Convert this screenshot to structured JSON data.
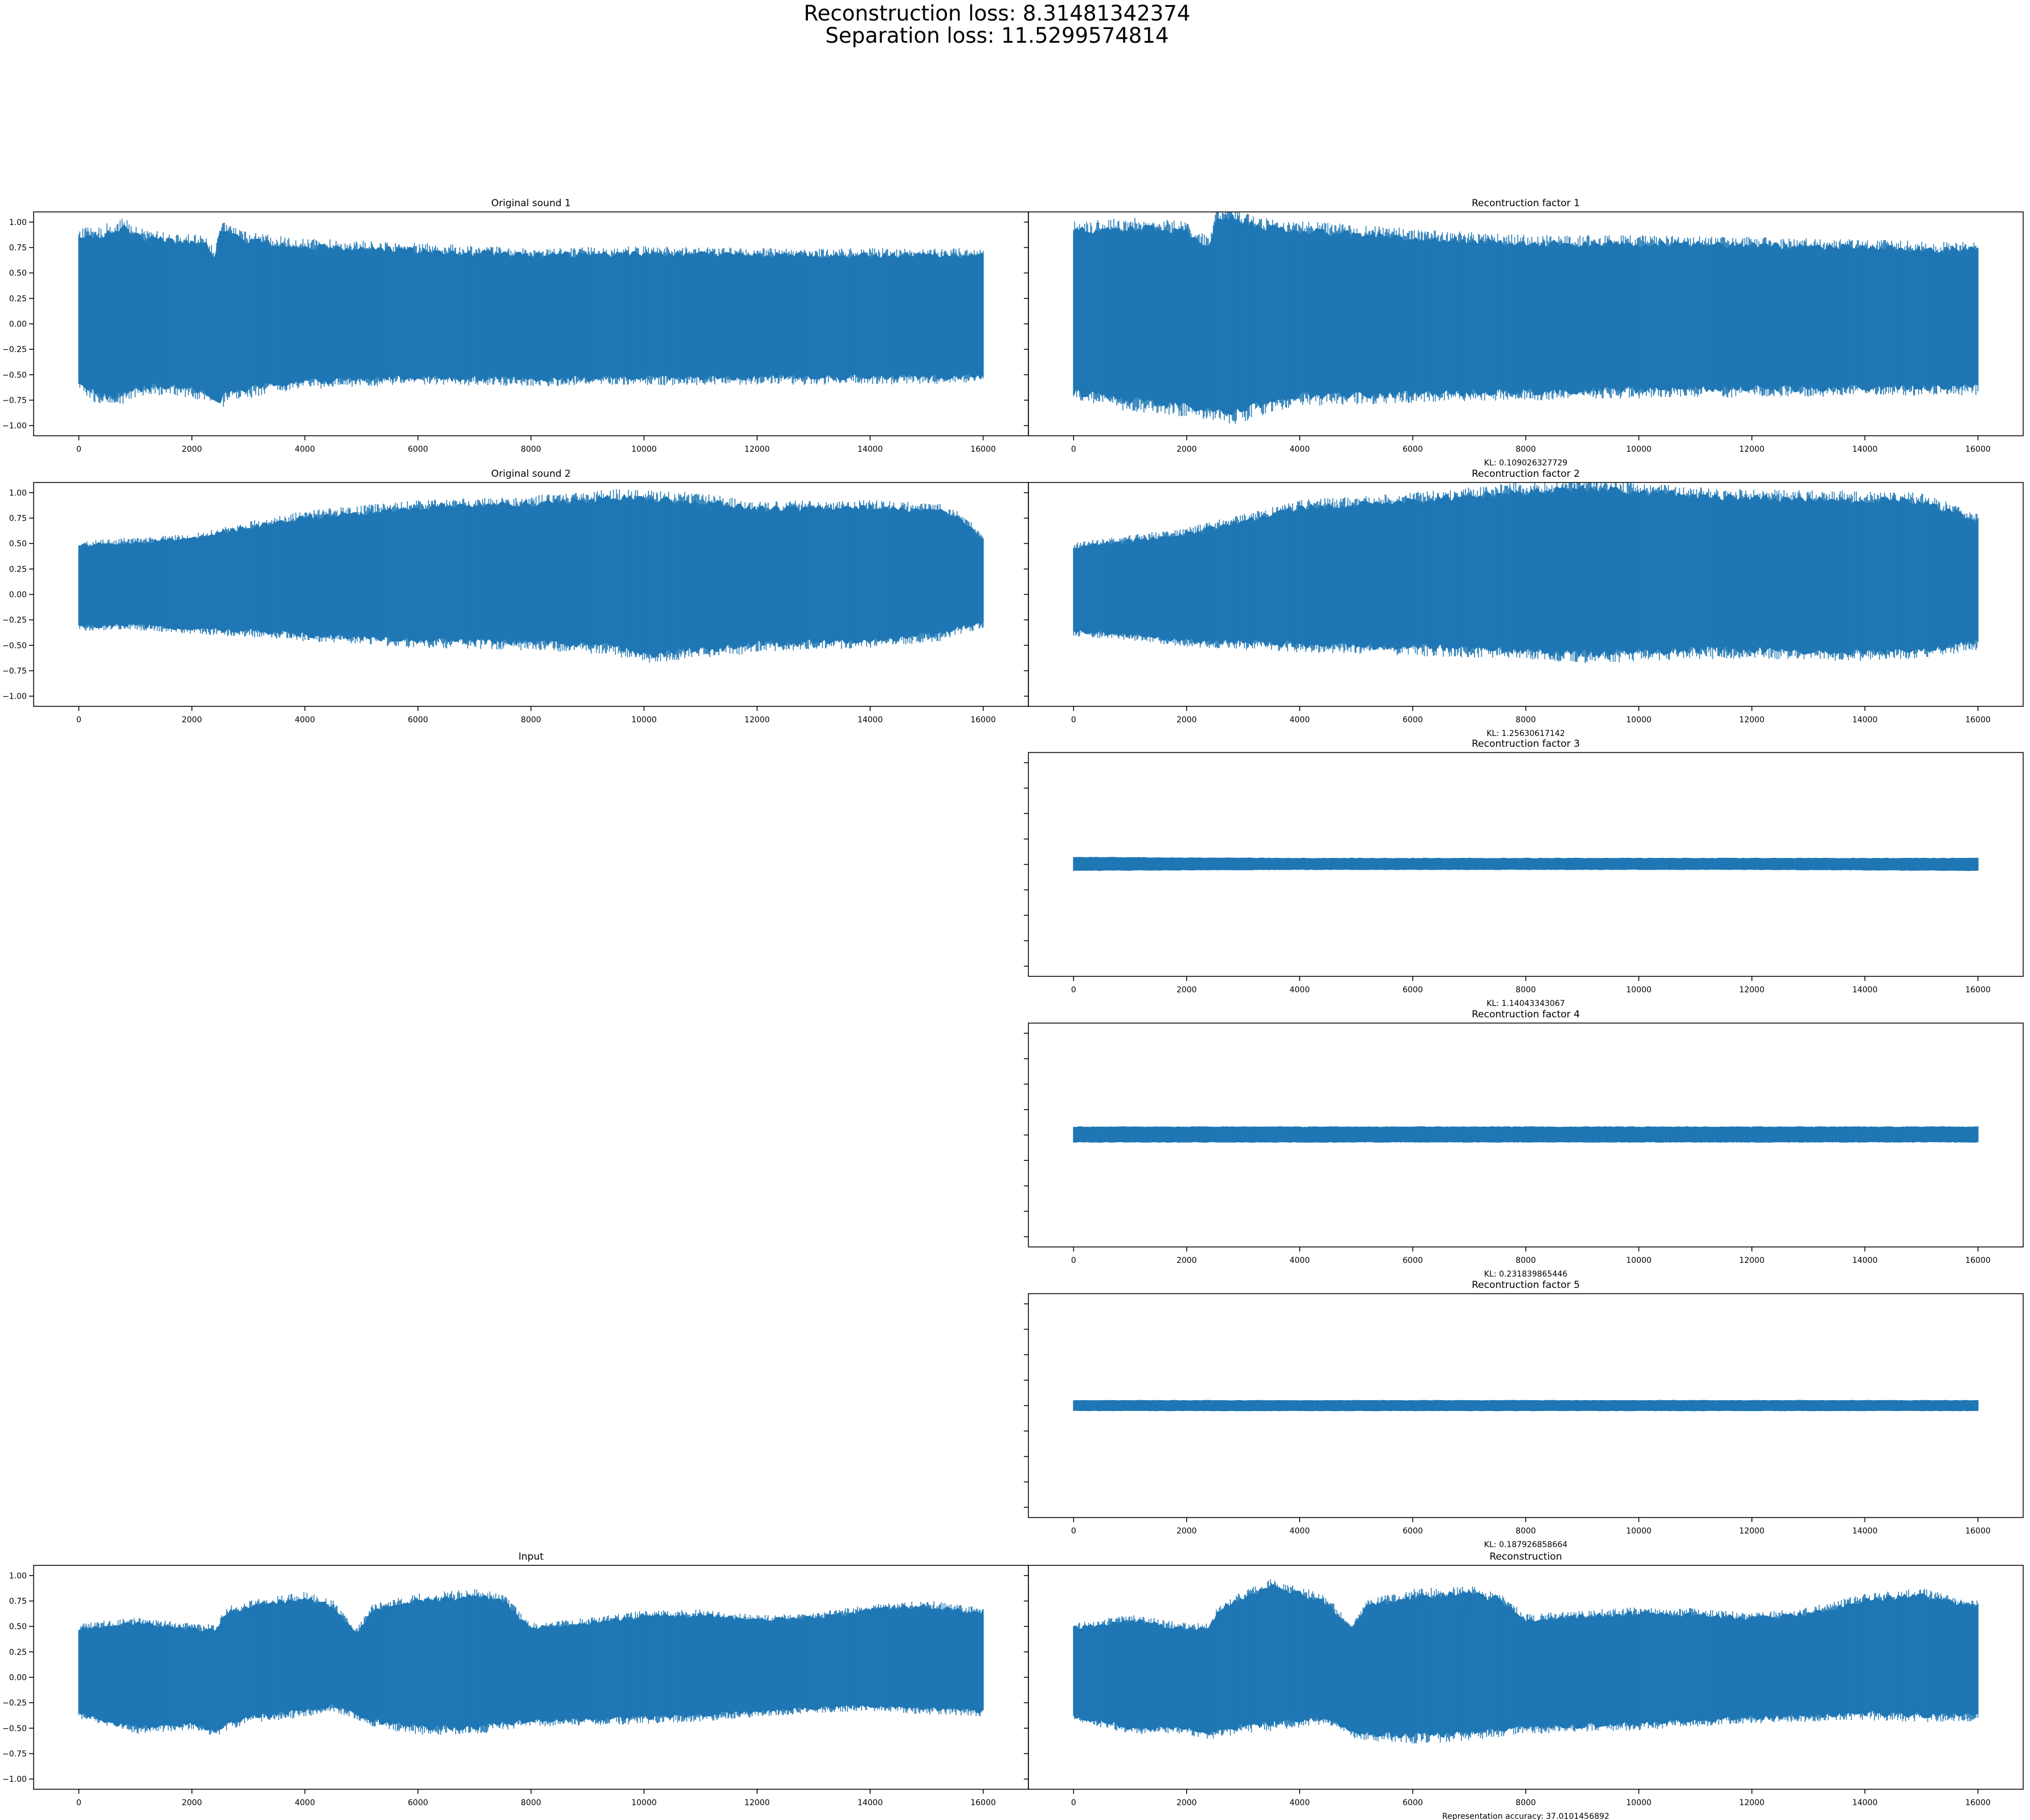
{
  "figure": {
    "suptitle_line1": "Reconstruction loss: 8.31481342374",
    "suptitle_line2": "Separation loss: 11.5299574814",
    "line_color": "#1f77b4"
  },
  "chart_data": [
    {
      "id": "orig1",
      "type": "line",
      "title": "Original sound 1",
      "xlabel": "",
      "xlim": [
        -800,
        16800
      ],
      "ylim": [
        -1.1,
        1.1
      ],
      "xticks": [
        0,
        2000,
        4000,
        6000,
        8000,
        10000,
        12000,
        14000,
        16000
      ],
      "yticks": [
        -1.0,
        -0.75,
        -0.5,
        -0.25,
        0.0,
        0.25,
        0.5,
        0.75,
        1.0
      ],
      "ytick_labels": [
        "−1.00",
        "−0.75",
        "−0.50",
        "−0.25",
        "0.00",
        "0.25",
        "0.50",
        "0.75",
        "1.00"
      ],
      "envelope": {
        "x": [
          0,
          300,
          600,
          800,
          1000,
          1400,
          1800,
          2200,
          2400,
          2500,
          2700,
          3000,
          3400,
          4000,
          6000,
          8000,
          10000,
          12000,
          14000,
          16000
        ],
        "upper": [
          0.9,
          0.88,
          0.95,
          0.98,
          0.9,
          0.86,
          0.82,
          0.85,
          0.68,
          0.93,
          0.94,
          0.85,
          0.82,
          0.79,
          0.75,
          0.7,
          0.72,
          0.7,
          0.7,
          0.7
        ],
        "lower": [
          -0.6,
          -0.72,
          -0.76,
          -0.72,
          -0.68,
          -0.65,
          -0.66,
          -0.7,
          -0.75,
          -0.78,
          -0.7,
          -0.68,
          -0.63,
          -0.6,
          -0.55,
          -0.57,
          -0.56,
          -0.56,
          -0.55,
          -0.55
        ]
      }
    },
    {
      "id": "rec1",
      "type": "line",
      "title": "Recontruction factor 1",
      "xlabel": "KL: 0.109026327729",
      "xlim": [
        -800,
        16800
      ],
      "ylim": [
        -1.1,
        1.1
      ],
      "xticks": [
        0,
        2000,
        4000,
        6000,
        8000,
        10000,
        12000,
        14000,
        16000
      ],
      "envelope": {
        "x": [
          0,
          1000,
          2000,
          2400,
          2500,
          2800,
          3000,
          3500,
          4000,
          6000,
          8000,
          10000,
          12000,
          14000,
          16000
        ],
        "upper": [
          0.95,
          0.98,
          0.95,
          0.78,
          1.05,
          1.1,
          1.05,
          0.97,
          0.95,
          0.88,
          0.82,
          0.82,
          0.8,
          0.78,
          0.75
        ],
        "lower": [
          -0.7,
          -0.8,
          -0.85,
          -0.9,
          -0.88,
          -0.92,
          -0.9,
          -0.8,
          -0.75,
          -0.72,
          -0.7,
          -0.68,
          -0.67,
          -0.66,
          -0.65
        ]
      }
    },
    {
      "id": "orig2",
      "type": "line",
      "title": "Original sound 2",
      "xlabel": "",
      "xlim": [
        -800,
        16800
      ],
      "ylim": [
        -1.1,
        1.1
      ],
      "xticks": [
        0,
        2000,
        4000,
        6000,
        8000,
        10000,
        12000,
        14000,
        16000
      ],
      "yticks": [
        -1.0,
        -0.75,
        -0.5,
        -0.25,
        0.0,
        0.25,
        0.5,
        0.75,
        1.0
      ],
      "ytick_labels": [
        "−1.00",
        "−0.75",
        "−0.50",
        "−0.25",
        "0.00",
        "0.25",
        "0.50",
        "0.75",
        "1.00"
      ],
      "envelope": {
        "x": [
          0,
          1000,
          2000,
          3000,
          4000,
          6000,
          8000,
          9500,
          10000,
          11000,
          12000,
          14000,
          15200,
          15600,
          16000
        ],
        "upper": [
          0.5,
          0.53,
          0.56,
          0.68,
          0.78,
          0.88,
          0.92,
          0.98,
          0.97,
          0.95,
          0.87,
          0.88,
          0.85,
          0.78,
          0.55
        ],
        "lower": [
          -0.33,
          -0.32,
          -0.36,
          -0.38,
          -0.42,
          -0.48,
          -0.5,
          -0.55,
          -0.62,
          -0.58,
          -0.52,
          -0.48,
          -0.42,
          -0.35,
          -0.3
        ]
      }
    },
    {
      "id": "rec2",
      "type": "line",
      "title": "Recontruction factor 2",
      "xlabel": "KL: 1.25630617142",
      "xlim": [
        -800,
        16800
      ],
      "ylim": [
        -1.1,
        1.1
      ],
      "xticks": [
        0,
        2000,
        4000,
        6000,
        8000,
        10000,
        12000,
        14000,
        16000
      ],
      "envelope": {
        "x": [
          0,
          1000,
          2000,
          3000,
          4000,
          6000,
          8000,
          9000,
          10000,
          11000,
          12000,
          14000,
          15000,
          16000
        ],
        "upper": [
          0.48,
          0.55,
          0.62,
          0.75,
          0.88,
          0.95,
          1.05,
          1.08,
          1.05,
          1.0,
          0.98,
          0.96,
          0.95,
          0.75
        ],
        "lower": [
          -0.38,
          -0.42,
          -0.48,
          -0.5,
          -0.52,
          -0.55,
          -0.58,
          -0.62,
          -0.6,
          -0.58,
          -0.58,
          -0.6,
          -0.58,
          -0.5
        ]
      }
    },
    {
      "id": "rec3",
      "type": "line",
      "title": "Recontruction factor 3",
      "xlabel": "KL: 1.14043343067",
      "xlim": [
        -800,
        16800
      ],
      "ylim": [
        -1.1,
        1.1
      ],
      "xticks": [
        0,
        2000,
        4000,
        6000,
        8000,
        10000,
        12000,
        14000,
        16000
      ],
      "envelope": {
        "x": [
          0,
          4000,
          8000,
          12000,
          16000
        ],
        "upper": [
          0.07,
          0.06,
          0.06,
          0.06,
          0.06
        ],
        "lower": [
          -0.06,
          -0.05,
          -0.05,
          -0.05,
          -0.06
        ]
      }
    },
    {
      "id": "rec4",
      "type": "line",
      "title": "Recontruction factor 4",
      "xlabel": "KL: 0.231839865446",
      "xlim": [
        -800,
        16800
      ],
      "ylim": [
        -1.1,
        1.1
      ],
      "xticks": [
        0,
        2000,
        4000,
        6000,
        8000,
        10000,
        12000,
        14000,
        16000
      ],
      "envelope": {
        "x": [
          0,
          4000,
          8000,
          12000,
          16000
        ],
        "upper": [
          0.08,
          0.08,
          0.08,
          0.08,
          0.08
        ],
        "lower": [
          -0.07,
          -0.07,
          -0.07,
          -0.07,
          -0.07
        ]
      }
    },
    {
      "id": "rec5",
      "type": "line",
      "title": "Recontruction factor 5",
      "xlabel": "KL: 0.187926858664",
      "xlim": [
        -800,
        16800
      ],
      "ylim": [
        -1.1,
        1.1
      ],
      "xticks": [
        0,
        2000,
        4000,
        6000,
        8000,
        10000,
        12000,
        14000,
        16000
      ],
      "envelope": {
        "x": [
          0,
          4000,
          8000,
          12000,
          16000
        ],
        "upper": [
          0.05,
          0.05,
          0.05,
          0.05,
          0.05
        ],
        "lower": [
          -0.05,
          -0.05,
          -0.05,
          -0.05,
          -0.05
        ]
      }
    },
    {
      "id": "input",
      "type": "line",
      "title": "Input",
      "xlabel": "",
      "xlim": [
        -800,
        16800
      ],
      "ylim": [
        -1.1,
        1.1
      ],
      "xticks": [
        0,
        2000,
        4000,
        6000,
        8000,
        10000,
        12000,
        14000,
        16000
      ],
      "yticks": [
        -1.0,
        -0.75,
        -0.5,
        -0.25,
        0.0,
        0.25,
        0.5,
        0.75,
        1.0
      ],
      "ytick_labels": [
        "−1.00",
        "−0.75",
        "−0.50",
        "−0.25",
        "0.00",
        "0.25",
        "0.50",
        "0.75",
        "1.00"
      ],
      "envelope": {
        "x": [
          0,
          1000,
          2000,
          2400,
          2600,
          3000,
          4000,
          4500,
          4900,
          5200,
          6000,
          7000,
          7500,
          8000,
          9000,
          10000,
          11000,
          12000,
          13000,
          14000,
          15000,
          16000
        ],
        "upper": [
          0.5,
          0.55,
          0.5,
          0.48,
          0.65,
          0.72,
          0.8,
          0.72,
          0.45,
          0.68,
          0.78,
          0.82,
          0.78,
          0.5,
          0.55,
          0.62,
          0.63,
          0.58,
          0.6,
          0.68,
          0.72,
          0.65
        ],
        "lower": [
          -0.38,
          -0.52,
          -0.48,
          -0.55,
          -0.5,
          -0.42,
          -0.35,
          -0.3,
          -0.38,
          -0.45,
          -0.52,
          -0.52,
          -0.48,
          -0.45,
          -0.44,
          -0.42,
          -0.4,
          -0.36,
          -0.32,
          -0.3,
          -0.33,
          -0.35
        ]
      }
    },
    {
      "id": "recon",
      "type": "line",
      "title": "Reconstruction",
      "xlabel": "Representation accuracy: 37.0101456892",
      "xlim": [
        -800,
        16800
      ],
      "ylim": [
        -1.1,
        1.1
      ],
      "xticks": [
        0,
        2000,
        4000,
        6000,
        8000,
        10000,
        12000,
        14000,
        16000
      ],
      "envelope": {
        "x": [
          0,
          1000,
          2000,
          2400,
          2600,
          3000,
          3500,
          4000,
          4500,
          4900,
          5200,
          6000,
          7000,
          7500,
          8000,
          9000,
          10000,
          11000,
          12000,
          13000,
          14000,
          15000,
          16000
        ],
        "upper": [
          0.5,
          0.58,
          0.5,
          0.5,
          0.7,
          0.8,
          0.92,
          0.85,
          0.75,
          0.5,
          0.72,
          0.82,
          0.85,
          0.8,
          0.58,
          0.62,
          0.65,
          0.64,
          0.6,
          0.65,
          0.78,
          0.83,
          0.72
        ],
        "lower": [
          -0.4,
          -0.52,
          -0.52,
          -0.58,
          -0.55,
          -0.5,
          -0.48,
          -0.45,
          -0.42,
          -0.55,
          -0.58,
          -0.6,
          -0.58,
          -0.55,
          -0.52,
          -0.5,
          -0.48,
          -0.45,
          -0.42,
          -0.4,
          -0.38,
          -0.4,
          -0.4
        ]
      }
    }
  ]
}
